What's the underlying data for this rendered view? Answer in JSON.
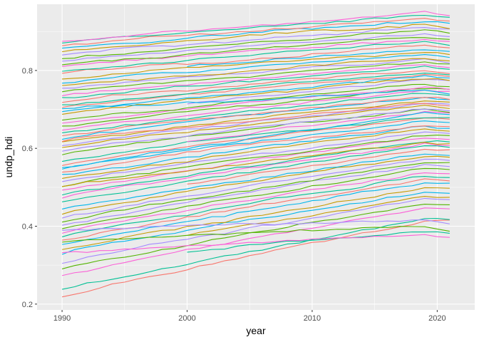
{
  "chart_data": {
    "type": "line",
    "title": "",
    "xlabel": "year",
    "ylabel": "undp_hdi",
    "xlim": [
      1988,
      2023
    ],
    "ylim": [
      0.185,
      0.97
    ],
    "x_ticks": [
      1990,
      2000,
      2010,
      2020
    ],
    "y_ticks": [
      0.2,
      0.4,
      0.6,
      0.8
    ],
    "x_tick_labels": [
      "1990",
      "2000",
      "2010",
      "2020"
    ],
    "y_tick_labels": [
      "0.2",
      "0.4",
      "0.6",
      "0.8"
    ],
    "grid": true,
    "legend": "none",
    "background": "#EBEBEB",
    "palette": [
      "#F8766D",
      "#C49A00",
      "#53B400",
      "#00C094",
      "#00B6EB",
      "#A58AFF",
      "#FB61D7"
    ],
    "x_years": [
      1990,
      2021
    ],
    "series": [
      {
        "start": 0.219,
        "end": 0.428
      },
      {
        "start": 0.238,
        "end": 0.43
      },
      {
        "start": 0.272,
        "end": 0.455
      },
      {
        "start": 0.29,
        "end": 0.466
      },
      {
        "start": 0.305,
        "end": 0.478
      },
      {
        "start": 0.316,
        "end": 0.49
      },
      {
        "start": 0.328,
        "end": 0.5
      },
      {
        "start": 0.34,
        "end": 0.508
      },
      {
        "start": 0.352,
        "end": 0.52
      },
      {
        "start": 0.362,
        "end": 0.53
      },
      {
        "start": 0.372,
        "end": 0.538
      },
      {
        "start": 0.382,
        "end": 0.548
      },
      {
        "start": 0.392,
        "end": 0.558
      },
      {
        "start": 0.402,
        "end": 0.567
      },
      {
        "start": 0.412,
        "end": 0.575
      },
      {
        "start": 0.422,
        "end": 0.583
      },
      {
        "start": 0.432,
        "end": 0.59
      },
      {
        "start": 0.442,
        "end": 0.598
      },
      {
        "start": 0.452,
        "end": 0.606
      },
      {
        "start": 0.462,
        "end": 0.614
      },
      {
        "start": 0.472,
        "end": 0.621
      },
      {
        "start": 0.482,
        "end": 0.628
      },
      {
        "start": 0.492,
        "end": 0.635
      },
      {
        "start": 0.502,
        "end": 0.643
      },
      {
        "start": 0.512,
        "end": 0.65
      },
      {
        "start": 0.521,
        "end": 0.657
      },
      {
        "start": 0.53,
        "end": 0.664
      },
      {
        "start": 0.539,
        "end": 0.671
      },
      {
        "start": 0.548,
        "end": 0.678
      },
      {
        "start": 0.557,
        "end": 0.685
      },
      {
        "start": 0.566,
        "end": 0.692
      },
      {
        "start": 0.575,
        "end": 0.699
      },
      {
        "start": 0.584,
        "end": 0.706
      },
      {
        "start": 0.592,
        "end": 0.712
      },
      {
        "start": 0.6,
        "end": 0.718
      },
      {
        "start": 0.608,
        "end": 0.724
      },
      {
        "start": 0.616,
        "end": 0.73
      },
      {
        "start": 0.624,
        "end": 0.736
      },
      {
        "start": 0.632,
        "end": 0.742
      },
      {
        "start": 0.64,
        "end": 0.748
      },
      {
        "start": 0.648,
        "end": 0.754
      },
      {
        "start": 0.656,
        "end": 0.76
      },
      {
        "start": 0.664,
        "end": 0.766
      },
      {
        "start": 0.672,
        "end": 0.772
      },
      {
        "start": 0.68,
        "end": 0.778
      },
      {
        "start": 0.688,
        "end": 0.784
      },
      {
        "start": 0.696,
        "end": 0.79
      },
      {
        "start": 0.704,
        "end": 0.796
      },
      {
        "start": 0.712,
        "end": 0.802
      },
      {
        "start": 0.72,
        "end": 0.808
      },
      {
        "start": 0.728,
        "end": 0.814
      },
      {
        "start": 0.736,
        "end": 0.82
      },
      {
        "start": 0.744,
        "end": 0.826
      },
      {
        "start": 0.752,
        "end": 0.832
      },
      {
        "start": 0.76,
        "end": 0.838
      },
      {
        "start": 0.768,
        "end": 0.845
      },
      {
        "start": 0.776,
        "end": 0.852
      },
      {
        "start": 0.784,
        "end": 0.86
      },
      {
        "start": 0.792,
        "end": 0.868
      },
      {
        "start": 0.8,
        "end": 0.876
      },
      {
        "start": 0.808,
        "end": 0.884
      },
      {
        "start": 0.816,
        "end": 0.892
      },
      {
        "start": 0.824,
        "end": 0.9
      },
      {
        "start": 0.832,
        "end": 0.908
      },
      {
        "start": 0.84,
        "end": 0.916
      },
      {
        "start": 0.848,
        "end": 0.924
      },
      {
        "start": 0.856,
        "end": 0.932
      },
      {
        "start": 0.864,
        "end": 0.94
      },
      {
        "start": 0.87,
        "end": 0.948
      },
      {
        "start": 0.875,
        "end": 0.955
      },
      {
        "start": 0.3,
        "end": 0.395
      },
      {
        "start": 0.33,
        "end": 0.385
      },
      {
        "start": 0.36,
        "end": 0.405
      },
      {
        "start": 0.39,
        "end": 0.42
      },
      {
        "start": 0.5,
        "end": 0.62
      },
      {
        "start": 0.55,
        "end": 0.7
      },
      {
        "start": 0.62,
        "end": 0.72
      },
      {
        "start": 0.7,
        "end": 0.75
      }
    ]
  }
}
